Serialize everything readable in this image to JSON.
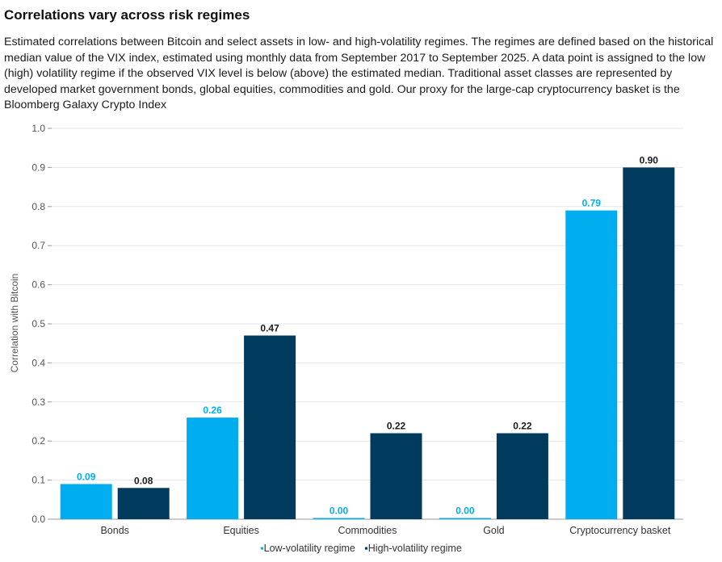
{
  "header": {
    "title": "Correlations vary across risk regimes",
    "subtitle": "Estimated correlations between Bitcoin and select assets in low- and high-volatility regimes. The regimes are defined based on the historical median value of the VIX index, estimated using monthly data from September 2017 to September 2025. A data point is assigned to the low (high) volatility regime if the observed VIX level is below (above) the estimated median. Traditional asset classes are represented by developed market government bonds, global equities, commodities and gold. Our proxy for the large-cap cryptocurrency basket is the Bloomberg Galaxy Crypto Index"
  },
  "colors": {
    "low": "#00aeef",
    "high": "#003a5d",
    "grid": "#e6e6e6",
    "axis": "#999999"
  },
  "chart_data": {
    "type": "bar",
    "title": "Correlations vary across risk regimes",
    "xlabel": "",
    "ylabel": "Correlation with Bitcoin",
    "ylim": [
      0,
      1.0
    ],
    "yticks": [
      "0.0",
      "0.1",
      "0.2",
      "0.3",
      "0.4",
      "0.5",
      "0.6",
      "0.7",
      "0.8",
      "0.9",
      "1.0"
    ],
    "categories": [
      "Bonds",
      "Equities",
      "Commodities",
      "Gold",
      "Cryptocurrency basket"
    ],
    "series": [
      {
        "name": "Low-volatility regime",
        "values": [
          0.09,
          0.26,
          0.0,
          0.0,
          0.79
        ],
        "labels": [
          "0.09",
          "0.26",
          "0.00",
          "0.00",
          "0.79"
        ]
      },
      {
        "name": "High-volatility regime",
        "values": [
          0.08,
          0.47,
          0.22,
          0.22,
          0.9
        ],
        "labels": [
          "0.08",
          "0.47",
          "0.22",
          "0.22",
          "0.90"
        ]
      }
    ],
    "grid": true,
    "legend": "bottom-center"
  }
}
